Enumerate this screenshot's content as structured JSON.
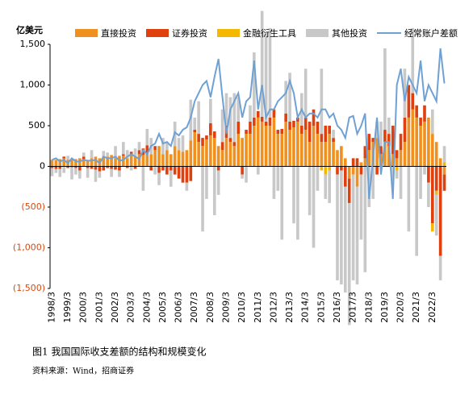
{
  "chart_data": {
    "type": "bar",
    "unit": "亿美元",
    "caption": "图1 我国国际收支差额的结构和规模变化",
    "source": "资料来源：Wind，招商证券",
    "ylim": [
      -1500,
      1500
    ],
    "yticks": [
      {
        "value": -1500,
        "label": "(1,500)"
      },
      {
        "value": -1000,
        "label": "(1,000)"
      },
      {
        "value": -500,
        "label": "(500)"
      },
      0,
      500,
      {
        "value": 1000,
        "label": "1,000"
      },
      {
        "value": 1500,
        "label": "1,500"
      }
    ],
    "negative_label_color": "#d9480f",
    "grid": false,
    "categories": [
      "1998/3",
      null,
      null,
      null,
      "1999/3",
      null,
      null,
      null,
      "2000/3",
      null,
      null,
      null,
      "2001/3",
      null,
      null,
      null,
      "2002/3",
      null,
      null,
      null,
      "2003/3",
      null,
      null,
      null,
      "2004/3",
      null,
      null,
      null,
      "2005/3",
      null,
      null,
      null,
      "2006/3",
      null,
      null,
      null,
      "2007/3",
      null,
      null,
      null,
      "2008/3",
      null,
      null,
      null,
      "2009/3",
      null,
      null,
      null,
      "2010/3",
      null,
      null,
      null,
      "2011/3",
      null,
      null,
      null,
      "2012/3",
      null,
      null,
      null,
      "2013/3",
      null,
      null,
      null,
      "2014/3",
      null,
      null,
      null,
      "2015/3",
      null,
      null,
      null,
      "2016/3",
      null,
      null,
      null,
      "2017/3",
      null,
      null,
      null,
      "2018/3",
      null,
      null,
      null,
      "2019/3",
      null,
      null,
      null,
      "2020/3",
      null,
      null,
      null,
      "2021/3",
      null,
      null,
      null,
      "2022/3",
      null,
      null,
      null
    ],
    "series": [
      {
        "name": "直接投资",
        "type": "bar",
        "color": "#f0901e",
        "values": [
          80,
          80,
          90,
          100,
          80,
          90,
          90,
          100,
          90,
          80,
          100,
          120,
          100,
          110,
          120,
          140,
          100,
          130,
          130,
          100,
          150,
          120,
          150,
          140,
          160,
          150,
          200,
          250,
          150,
          200,
          150,
          250,
          200,
          180,
          200,
          320,
          420,
          300,
          250,
          330,
          380,
          350,
          250,
          200,
          350,
          300,
          250,
          400,
          350,
          400,
          400,
          500,
          600,
          550,
          500,
          500,
          600,
          400,
          400,
          550,
          450,
          480,
          550,
          400,
          450,
          300,
          500,
          400,
          300,
          300,
          400,
          300,
          200,
          250,
          100,
          -150,
          -100,
          -250,
          50,
          100,
          200,
          300,
          350,
          150,
          300,
          250,
          150,
          100,
          200,
          300,
          600,
          700,
          600,
          500,
          550,
          600,
          400,
          300,
          100,
          -100
        ]
      },
      {
        "name": "证券投资",
        "type": "bar",
        "color": "#e0400e",
        "values": [
          -20,
          -30,
          -30,
          20,
          -20,
          -10,
          -20,
          -50,
          30,
          -20,
          -30,
          -40,
          -60,
          -50,
          -20,
          -30,
          -40,
          -50,
          20,
          -20,
          30,
          -30,
          50,
          80,
          100,
          -50,
          50,
          -80,
          -50,
          -100,
          -50,
          -100,
          -150,
          -200,
          -200,
          -180,
          30,
          100,
          100,
          50,
          150,
          80,
          -50,
          100,
          150,
          50,
          50,
          150,
          -100,
          50,
          150,
          100,
          80,
          60,
          50,
          100,
          100,
          50,
          60,
          100,
          100,
          80,
          50,
          100,
          150,
          250,
          200,
          150,
          100,
          200,
          100,
          50,
          -100,
          -50,
          -250,
          -300,
          100,
          100,
          -100,
          150,
          200,
          50,
          -100,
          100,
          150,
          150,
          350,
          100,
          200,
          300,
          400,
          200,
          150,
          100,
          200,
          -200,
          -700,
          -300,
          -1100,
          -200
        ]
      },
      {
        "name": "金融衍生工具",
        "type": "bar",
        "color": "#f5b800",
        "values": [
          0,
          0,
          0,
          0,
          0,
          0,
          0,
          0,
          0,
          0,
          0,
          0,
          0,
          0,
          0,
          0,
          0,
          0,
          0,
          0,
          0,
          0,
          0,
          0,
          0,
          0,
          0,
          0,
          0,
          0,
          0,
          0,
          0,
          0,
          0,
          0,
          0,
          0,
          0,
          0,
          0,
          0,
          0,
          0,
          0,
          0,
          0,
          0,
          0,
          0,
          0,
          0,
          0,
          0,
          0,
          0,
          0,
          0,
          0,
          0,
          0,
          0,
          0,
          0,
          0,
          0,
          0,
          0,
          -50,
          -100,
          -50,
          0,
          0,
          0,
          0,
          0,
          0,
          0,
          0,
          0,
          0,
          0,
          0,
          0,
          0,
          0,
          0,
          -50,
          0,
          0,
          0,
          0,
          0,
          0,
          0,
          0,
          -100,
          -50,
          0,
          50
        ]
      },
      {
        "name": "其他投资",
        "type": "bar",
        "color": "#c8c8c8",
        "values": [
          -100,
          -50,
          -100,
          -80,
          50,
          -150,
          -80,
          -100,
          50,
          -120,
          100,
          -150,
          -80,
          80,
          50,
          -100,
          150,
          -80,
          150,
          100,
          -50,
          100,
          100,
          -300,
          200,
          200,
          -100,
          -150,
          200,
          100,
          -200,
          300,
          150,
          200,
          -100,
          500,
          150,
          400,
          -800,
          -400,
          300,
          -600,
          -300,
          400,
          400,
          500,
          600,
          300,
          -50,
          -200,
          200,
          800,
          -100,
          1300,
          1100,
          1100,
          -400,
          -300,
          -900,
          400,
          600,
          -700,
          -900,
          400,
          600,
          -600,
          -1000,
          -300,
          800,
          -300,
          -400,
          100,
          -1300,
          -1400,
          -1300,
          -1500,
          -1300,
          -1200,
          -800,
          -1300,
          -500,
          -400,
          200,
          300,
          1000,
          200,
          -200,
          -100,
          -400,
          600,
          -800,
          800,
          -1100,
          -400,
          -100,
          -300,
          300,
          -500,
          -300,
          200
        ]
      },
      {
        "name": "经常账户差额",
        "type": "line",
        "color": "#6fa1d4",
        "values": [
          80,
          100,
          60,
          80,
          40,
          100,
          60,
          60,
          80,
          70,
          70,
          80,
          40,
          120,
          100,
          100,
          120,
          70,
          80,
          120,
          150,
          120,
          90,
          200,
          150,
          250,
          280,
          400,
          280,
          300,
          250,
          420,
          380,
          450,
          480,
          600,
          800,
          900,
          1000,
          1050,
          850,
          1100,
          1320,
          850,
          400,
          700,
          800,
          900,
          600,
          800,
          850,
          1300,
          700,
          1000,
          600,
          700,
          700,
          800,
          850,
          900,
          1050,
          900,
          600,
          700,
          600,
          650,
          650,
          600,
          700,
          700,
          600,
          650,
          500,
          450,
          350,
          600,
          620,
          400,
          500,
          650,
          -400,
          100,
          600,
          -100,
          300,
          300,
          -400,
          1000,
          1200,
          800,
          1100,
          1000,
          900,
          1300,
          800,
          1000,
          900,
          800,
          1450,
          1020
        ]
      }
    ]
  }
}
